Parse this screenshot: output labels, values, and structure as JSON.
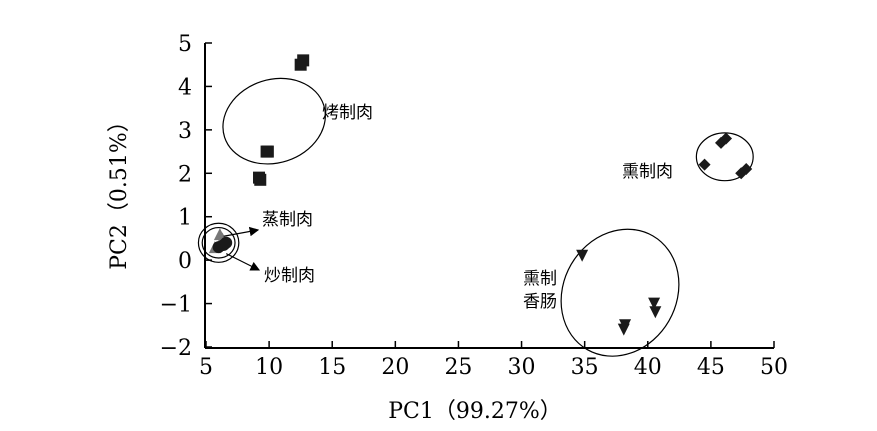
{
  "chart_data": {
    "type": "scatter",
    "xlabel": "PC1（99.27%）",
    "ylabel": "PC2（0.51%）",
    "xlim": [
      5,
      50
    ],
    "ylim": [
      -2,
      5
    ],
    "xticks": [
      "5",
      "10",
      "15",
      "20",
      "25",
      "30",
      "35",
      "40",
      "45",
      "50"
    ],
    "yticks": [
      "5",
      "4",
      "3",
      "2",
      "1",
      "0",
      "−1",
      "−2"
    ],
    "grid": false,
    "groups": [
      {
        "label": "烤制肉",
        "marker": "square",
        "color": "#1a1a1a",
        "points": [
          [
            12.5,
            4.5
          ],
          [
            12.7,
            4.6
          ],
          [
            9.8,
            2.5
          ],
          [
            9.9,
            2.5
          ],
          [
            9.2,
            1.9
          ],
          [
            9.3,
            1.85
          ]
        ],
        "ellipse": {
          "cx": 10.4,
          "cy": 3.2,
          "rx": 3.3,
          "ry": 1.2,
          "angle": 72
        }
      },
      {
        "label": "蒸制肉",
        "marker": "triangle-up",
        "color": "#777777",
        "points": [
          [
            5.7,
            0.3
          ],
          [
            6.1,
            0.6
          ],
          [
            6.3,
            0.5
          ]
        ],
        "ellipse": {
          "cx": 6.0,
          "cy": 0.4,
          "rx": 1.6,
          "ry": 0.45,
          "angle": 0
        }
      },
      {
        "label": "炒制肉",
        "marker": "circle",
        "color": "#1a1a1a",
        "points": [
          [
            6.0,
            0.3
          ],
          [
            6.4,
            0.35
          ],
          [
            6.6,
            0.4
          ]
        ],
        "ellipse": {
          "cx": 6.0,
          "cy": 0.4,
          "rx": 1.3,
          "ry": 0.35,
          "angle": 0
        }
      },
      {
        "label": "熏制肉",
        "marker": "diamond",
        "color": "#1a1a1a",
        "points": [
          [
            45.8,
            2.7
          ],
          [
            46.2,
            2.8
          ],
          [
            44.5,
            2.2
          ],
          [
            47.4,
            2.0
          ],
          [
            47.8,
            2.1
          ]
        ],
        "ellipse": {
          "cx": 46.1,
          "cy": 2.38,
          "rx": 2.25,
          "ry": 0.55,
          "angle": 0
        }
      },
      {
        "label": "熏制香肠",
        "label_lines": [
          "熏制",
          "香肠"
        ],
        "marker": "triangle-down",
        "color": "#1a1a1a",
        "points": [
          [
            34.8,
            0.1
          ],
          [
            40.5,
            -1.0
          ],
          [
            40.6,
            -1.2
          ],
          [
            38.2,
            -1.5
          ],
          [
            38.1,
            -1.6
          ]
        ],
        "ellipse": {
          "cx": 37.8,
          "cy": -0.75,
          "rx": 5.2,
          "ry": 1.3,
          "angle": -60
        }
      }
    ]
  }
}
